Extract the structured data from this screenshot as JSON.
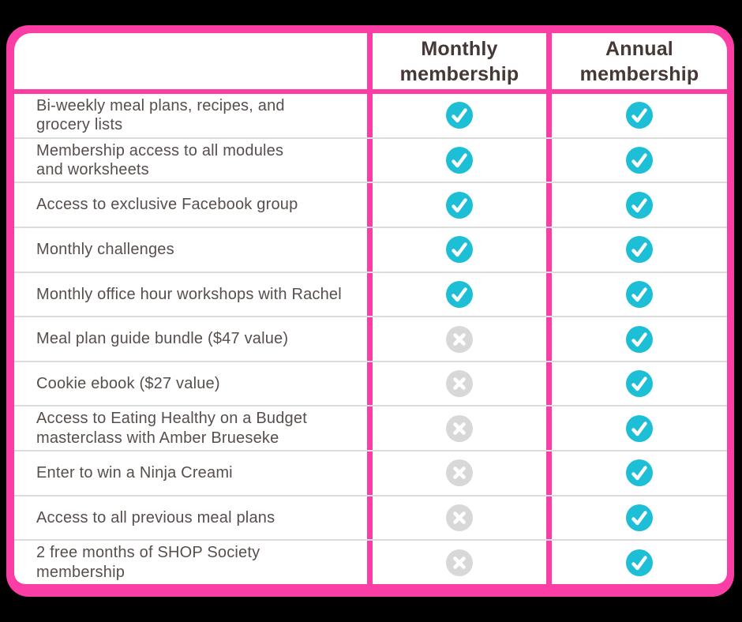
{
  "colors": {
    "background": "#000000",
    "pink": "#fb3ea6",
    "check_teal": "#1dbfd6",
    "cross_gray": "#d8d8d8",
    "header_text": "#463837",
    "body_text": "#584e4c",
    "row_divider": "#dcdcdc"
  },
  "table": {
    "header": {
      "feature_label": "",
      "monthly_label": "Monthly membership",
      "annual_label": "Annual membership"
    },
    "rows": [
      {
        "feature": "Bi-weekly meal plans, recipes, and\ngrocery lists",
        "monthly": true,
        "annual": true
      },
      {
        "feature": "Membership access to all modules\nand worksheets",
        "monthly": true,
        "annual": true
      },
      {
        "feature": "Access to exclusive Facebook group",
        "monthly": true,
        "annual": true
      },
      {
        "feature": "Monthly challenges",
        "monthly": true,
        "annual": true
      },
      {
        "feature": "Monthly office hour workshops with Rachel",
        "monthly": true,
        "annual": true
      },
      {
        "feature": "Meal plan guide bundle ($47 value)",
        "monthly": false,
        "annual": true
      },
      {
        "feature": "Cookie ebook ($27 value)",
        "monthly": false,
        "annual": true
      },
      {
        "feature": "Access to Eating Healthy on a Budget\nmasterclass with Amber Brueseke",
        "monthly": false,
        "annual": true
      },
      {
        "feature": "Enter to win a Ninja Creami",
        "monthly": false,
        "annual": true
      },
      {
        "feature": "Access to all previous meal plans",
        "monthly": false,
        "annual": true
      },
      {
        "feature": "2 free months of SHOP Society\nmembership",
        "monthly": false,
        "annual": true
      }
    ]
  },
  "icons": {
    "included": "check-icon",
    "not_included": "x-icon"
  }
}
